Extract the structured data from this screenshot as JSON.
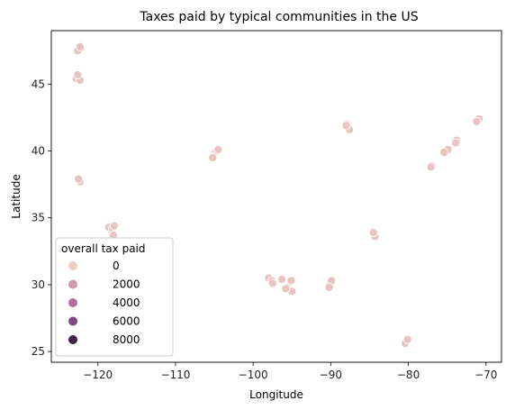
{
  "chart_data": {
    "type": "scatter",
    "title": "Taxes paid by typical communities in the US",
    "xlabel": "Longitude",
    "ylabel": "Latitude",
    "xlim": [
      -126,
      -68
    ],
    "ylim": [
      24.2,
      49
    ],
    "x_ticks": [
      -120,
      -110,
      -100,
      -90,
      -80,
      -70
    ],
    "x_tick_labels": [
      "−120",
      "−110",
      "−100",
      "−90",
      "−80",
      "−70"
    ],
    "y_ticks": [
      25,
      30,
      35,
      40,
      45
    ],
    "y_tick_labels": [
      "25",
      "30",
      "35",
      "40",
      "45"
    ],
    "grid": false,
    "legend": {
      "title": "overall tax paid",
      "placement": "lower-left",
      "entries": [
        {
          "label": "0",
          "color": "#ebcdc3"
        },
        {
          "label": "2000",
          "color": "#cf9aa9"
        },
        {
          "label": "4000",
          "color": "#b06f99"
        },
        {
          "label": "6000",
          "color": "#7c4a80"
        },
        {
          "label": "8000",
          "color": "#3f2349"
        }
      ]
    },
    "point_color": "#e7c3c1",
    "points": [
      {
        "x": -122.4,
        "y": 47.6
      },
      {
        "x": -122.2,
        "y": 47.7
      },
      {
        "x": -122.6,
        "y": 47.5
      },
      {
        "x": -122.3,
        "y": 47.8
      },
      {
        "x": -122.5,
        "y": 45.5
      },
      {
        "x": -122.7,
        "y": 45.6
      },
      {
        "x": -122.8,
        "y": 45.4
      },
      {
        "x": -122.3,
        "y": 45.3
      },
      {
        "x": -122.6,
        "y": 45.7
      },
      {
        "x": -122.4,
        "y": 37.8
      },
      {
        "x": -122.3,
        "y": 37.7
      },
      {
        "x": -122.5,
        "y": 37.9
      },
      {
        "x": -118.3,
        "y": 34.1
      },
      {
        "x": -118.6,
        "y": 34.3
      },
      {
        "x": -118.1,
        "y": 34.2
      },
      {
        "x": -117.9,
        "y": 34.4
      },
      {
        "x": -118.0,
        "y": 33.7
      },
      {
        "x": -105.0,
        "y": 39.7
      },
      {
        "x": -104.9,
        "y": 39.9
      },
      {
        "x": -104.7,
        "y": 40.0
      },
      {
        "x": -105.2,
        "y": 39.5
      },
      {
        "x": -104.5,
        "y": 40.1
      },
      {
        "x": -97.8,
        "y": 30.4
      },
      {
        "x": -97.7,
        "y": 30.2
      },
      {
        "x": -98.0,
        "y": 30.5
      },
      {
        "x": -97.6,
        "y": 30.3
      },
      {
        "x": -97.5,
        "y": 30.1
      },
      {
        "x": -96.3,
        "y": 30.4
      },
      {
        "x": -95.5,
        "y": 29.8
      },
      {
        "x": -95.3,
        "y": 29.6
      },
      {
        "x": -95.0,
        "y": 29.5
      },
      {
        "x": -95.8,
        "y": 29.7
      },
      {
        "x": -95.1,
        "y": 30.3
      },
      {
        "x": -90.1,
        "y": 30.0
      },
      {
        "x": -89.9,
        "y": 30.3
      },
      {
        "x": -90.2,
        "y": 29.8
      },
      {
        "x": -87.9,
        "y": 42.0
      },
      {
        "x": -87.7,
        "y": 41.8
      },
      {
        "x": -87.6,
        "y": 41.6
      },
      {
        "x": -88.0,
        "y": 41.9
      },
      {
        "x": -84.4,
        "y": 33.8
      },
      {
        "x": -84.3,
        "y": 33.6
      },
      {
        "x": -84.5,
        "y": 33.9
      },
      {
        "x": -80.2,
        "y": 25.8
      },
      {
        "x": -80.4,
        "y": 25.6
      },
      {
        "x": -80.1,
        "y": 25.9
      },
      {
        "x": -77.0,
        "y": 38.9
      },
      {
        "x": -77.1,
        "y": 38.8
      },
      {
        "x": -75.2,
        "y": 40.0
      },
      {
        "x": -74.9,
        "y": 40.1
      },
      {
        "x": -75.4,
        "y": 39.9
      },
      {
        "x": -74.0,
        "y": 40.7
      },
      {
        "x": -73.8,
        "y": 40.8
      },
      {
        "x": -73.9,
        "y": 40.6
      },
      {
        "x": -71.1,
        "y": 42.3
      },
      {
        "x": -70.9,
        "y": 42.4
      },
      {
        "x": -71.2,
        "y": 42.2
      }
    ]
  }
}
